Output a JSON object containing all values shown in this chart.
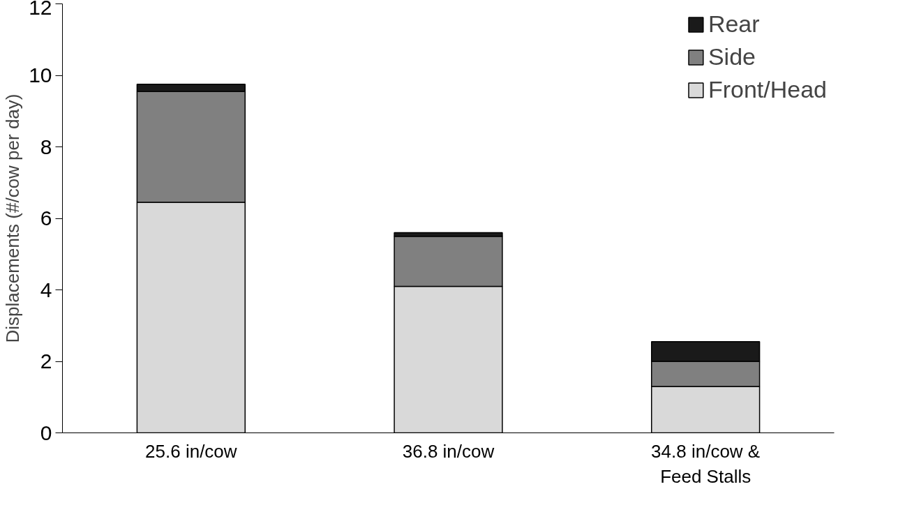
{
  "chart_data": {
    "type": "bar",
    "stacked": true,
    "ylabel": "Displacements (#/cow per day)",
    "categories": [
      "25.6 in/cow",
      "36.8 in/cow",
      "34.8 in/cow &\nFeed Stalls"
    ],
    "series": [
      {
        "name": "Front/Head",
        "color": "#d9d9d9",
        "values": [
          6.45,
          4.1,
          1.3
        ]
      },
      {
        "name": "Side",
        "color": "#808080",
        "values": [
          3.1,
          1.4,
          0.7
        ]
      },
      {
        "name": "Rear",
        "color": "#1a1a1a",
        "values": [
          0.2,
          0.1,
          0.55
        ]
      }
    ],
    "ylim": [
      0,
      12
    ],
    "yticks": [
      0,
      2,
      4,
      6,
      8,
      10,
      12
    ],
    "grid": false,
    "legend": "top right"
  }
}
